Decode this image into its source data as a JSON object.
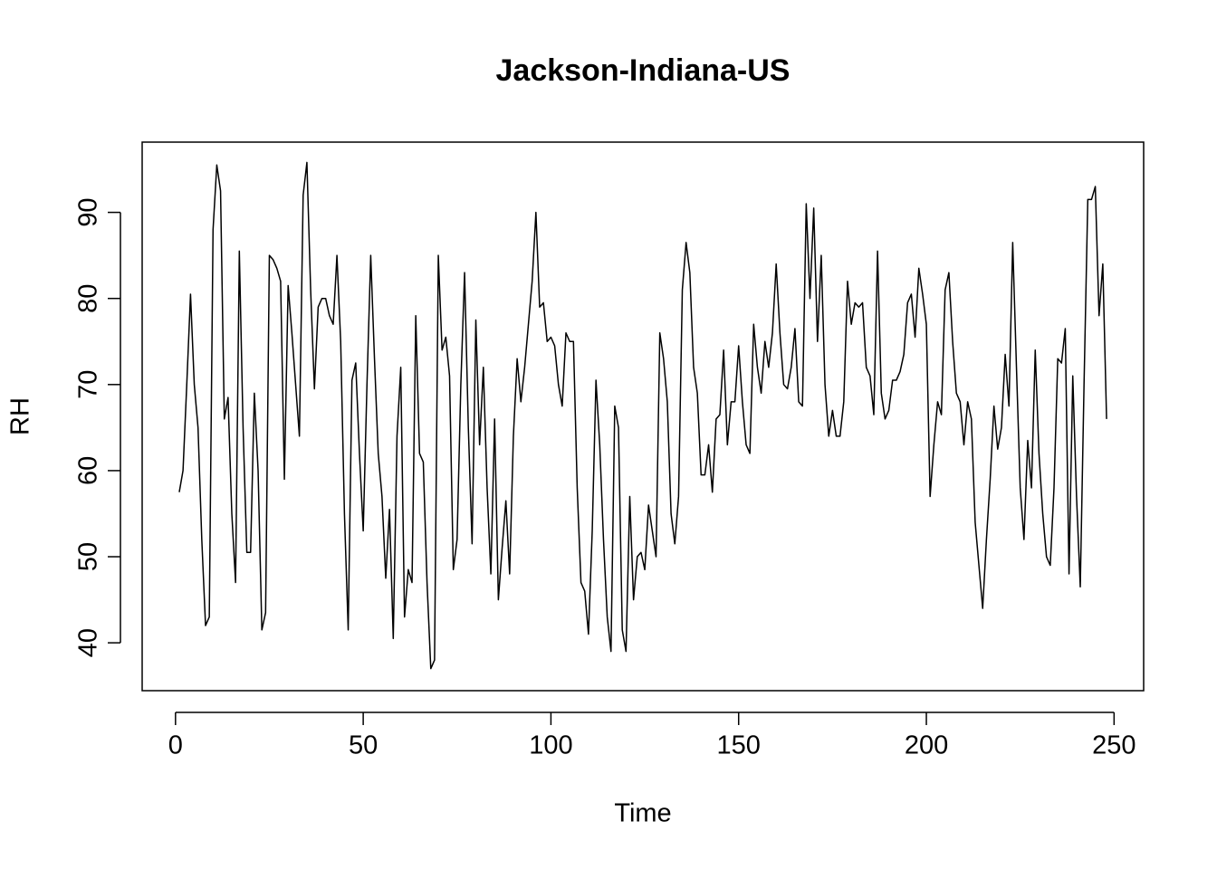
{
  "chart_data": {
    "type": "line",
    "title": "Jackson-Indiana-US",
    "xlabel": "Time",
    "ylabel": "RH",
    "color": "#000000",
    "grid": false,
    "x": [
      1,
      2,
      3,
      4,
      5,
      6,
      7,
      8,
      9,
      10,
      11,
      12,
      13,
      14,
      15,
      16,
      17,
      18,
      19,
      20,
      21,
      22,
      23,
      24,
      25,
      26,
      27,
      28,
      29,
      30,
      31,
      32,
      33,
      34,
      35,
      36,
      37,
      38,
      39,
      40,
      41,
      42,
      43,
      44,
      45,
      46,
      47,
      48,
      49,
      50,
      51,
      52,
      53,
      54,
      55,
      56,
      57,
      58,
      59,
      60,
      61,
      62,
      63,
      64,
      65,
      66,
      67,
      68,
      69,
      70,
      71,
      72,
      73,
      74,
      75,
      76,
      77,
      78,
      79,
      80,
      81,
      82,
      83,
      84,
      85,
      86,
      87,
      88,
      89,
      90,
      91,
      92,
      93,
      94,
      95,
      96,
      97,
      98,
      99,
      100,
      101,
      102,
      103,
      104,
      105,
      106,
      107,
      108,
      109,
      110,
      111,
      112,
      113,
      114,
      115,
      116,
      117,
      118,
      119,
      120,
      121,
      122,
      123,
      124,
      125,
      126,
      127,
      128,
      129,
      130,
      131,
      132,
      133,
      134,
      135,
      136,
      137,
      138,
      139,
      140,
      141,
      142,
      143,
      144,
      145,
      146,
      147,
      148,
      149,
      150,
      151,
      152,
      153,
      154,
      155,
      156,
      157,
      158,
      159,
      160,
      161,
      162,
      163,
      164,
      165,
      166,
      167,
      168,
      169,
      170,
      171,
      172,
      173,
      174,
      175,
      176,
      177,
      178,
      179,
      180,
      181,
      182,
      183,
      184,
      185,
      186,
      187,
      188,
      189,
      190,
      191,
      192,
      193,
      194,
      195,
      196,
      197,
      198,
      199,
      200,
      201,
      202,
      203,
      204,
      205,
      206,
      207,
      208,
      209,
      210,
      211,
      212,
      213,
      214,
      215,
      216,
      217,
      218,
      219,
      220,
      221,
      222,
      223,
      224,
      225,
      226,
      227,
      228,
      229,
      230,
      231,
      232,
      233,
      234,
      235,
      236,
      237,
      238,
      239,
      240,
      241,
      242,
      243,
      244,
      245,
      246,
      247,
      248
    ],
    "values": [
      57.5,
      60,
      70,
      80.5,
      70,
      65,
      52,
      42,
      43,
      88,
      95.5,
      92.5,
      66,
      68.5,
      55,
      47,
      85.5,
      65,
      50.5,
      50.5,
      69,
      60,
      41.5,
      43.5,
      85,
      84.5,
      83.5,
      82,
      59,
      81.5,
      76,
      70,
      64,
      92,
      95.8,
      81,
      69.5,
      79,
      80,
      80,
      78,
      77,
      85,
      75,
      55,
      41.5,
      70.5,
      72.5,
      62,
      53,
      70,
      85,
      73,
      62,
      57,
      47.5,
      55.5,
      40.5,
      64,
      72,
      43,
      48.5,
      47,
      78,
      62,
      61,
      47,
      37,
      38,
      85,
      74,
      75.5,
      71,
      48.5,
      52,
      70,
      83,
      65,
      51.5,
      77.5,
      63,
      72,
      58,
      48,
      66,
      45,
      51,
      56.5,
      48,
      64,
      73,
      68,
      72,
      77,
      82,
      90,
      79,
      79.5,
      75,
      75.5,
      74.5,
      70,
      67.5,
      76,
      75,
      75,
      58,
      47,
      46,
      41,
      53,
      70.5,
      63,
      52,
      43,
      39,
      67.5,
      65,
      41.5,
      39,
      57,
      45,
      50,
      50.5,
      48.5,
      56,
      53,
      50,
      76,
      73,
      68,
      55,
      51.5,
      57,
      81,
      86.5,
      83,
      72,
      69,
      59.5,
      59.5,
      63,
      57.5,
      66,
      66.5,
      74,
      63,
      68,
      68,
      74.5,
      68,
      63,
      62,
      77,
      72,
      69,
      75,
      72,
      76,
      84,
      76,
      70,
      69.5,
      72,
      76.5,
      68,
      67.5,
      91,
      80,
      90.5,
      75,
      85,
      70,
      64,
      67,
      64,
      64,
      68,
      82,
      77,
      79.5,
      79,
      79.5,
      72,
      71,
      66.5,
      85.5,
      69,
      66,
      67,
      70.5,
      70.5,
      71.5,
      73.5,
      79.5,
      80.5,
      75.5,
      83.5,
      80.5,
      77,
      57,
      63,
      68,
      66.5,
      81,
      83,
      75,
      69,
      68,
      63,
      68,
      66,
      54,
      49,
      44,
      52,
      59,
      67.5,
      62.5,
      65,
      73.5,
      67.5,
      86.5,
      72,
      58,
      52,
      63.5,
      58,
      74,
      62,
      55,
      50,
      49,
      58,
      73,
      72.5,
      76.5,
      48,
      71,
      57,
      46.5,
      70,
      91.5,
      91.5,
      93,
      78,
      84,
      66
    ],
    "xlim": [
      -8.88,
      257.88
    ],
    "xticks": [
      0,
      50,
      100,
      150,
      200,
      250
    ],
    "ylim": [
      34.44,
      98.16
    ],
    "yticks": [
      40,
      50,
      60,
      70,
      80,
      90
    ]
  }
}
